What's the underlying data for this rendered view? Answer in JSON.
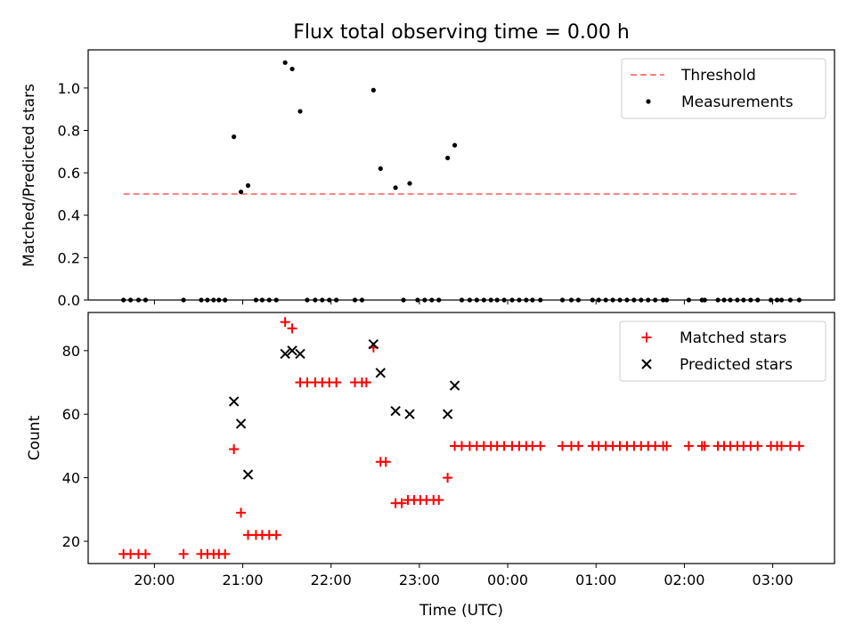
{
  "figure": {
    "title": "Flux total observing time = 0.00 h",
    "xlabel": "Time (UTC)",
    "xticks": [
      {
        "label": "20:00",
        "h": 20
      },
      {
        "label": "21:00",
        "h": 21
      },
      {
        "label": "22:00",
        "h": 22
      },
      {
        "label": "23:00",
        "h": 23
      },
      {
        "label": "00:00",
        "h": 24
      },
      {
        "label": "01:00",
        "h": 25
      },
      {
        "label": "02:00",
        "h": 26
      },
      {
        "label": "03:00",
        "h": 27
      }
    ],
    "xlim": [
      19.25,
      27.7
    ]
  },
  "colors": {
    "threshold": "#ff7f7f",
    "measurement": "#000000",
    "matched": "#ff0000",
    "predicted": "#000000"
  },
  "chart_data": [
    {
      "type": "scatter",
      "ylabel": "Matched/Predicted stars",
      "ylim": [
        0,
        1.18
      ],
      "yticks": [
        "0.0",
        "0.2",
        "0.4",
        "0.6",
        "0.8",
        "1.0"
      ],
      "legend": "top-right",
      "threshold": {
        "name": "Threshold",
        "value": 0.5,
        "x_range": [
          19.65,
          27.3
        ],
        "style": "dashed"
      },
      "series": [
        {
          "name": "Measurements",
          "points": [
            [
              19.65,
              0
            ],
            [
              19.73,
              0
            ],
            [
              19.82,
              0
            ],
            [
              19.9,
              0
            ],
            [
              20.33,
              0
            ],
            [
              20.53,
              0
            ],
            [
              20.6,
              0
            ],
            [
              20.67,
              0
            ],
            [
              20.73,
              0
            ],
            [
              20.8,
              0
            ],
            [
              20.9,
              0.77
            ],
            [
              20.98,
              0.51
            ],
            [
              21.06,
              0.54
            ],
            [
              21.15,
              0
            ],
            [
              21.22,
              0
            ],
            [
              21.3,
              0
            ],
            [
              21.38,
              0
            ],
            [
              21.48,
              1.12
            ],
            [
              21.56,
              1.09
            ],
            [
              21.65,
              0.89
            ],
            [
              21.73,
              0
            ],
            [
              21.82,
              0
            ],
            [
              21.9,
              0
            ],
            [
              21.98,
              0
            ],
            [
              22.06,
              0
            ],
            [
              22.27,
              0
            ],
            [
              22.35,
              0
            ],
            [
              22.48,
              0.99
            ],
            [
              22.56,
              0.62
            ],
            [
              22.73,
              0.53
            ],
            [
              22.82,
              0
            ],
            [
              22.89,
              0.55
            ],
            [
              22.98,
              0
            ],
            [
              23.06,
              0
            ],
            [
              23.14,
              0
            ],
            [
              23.22,
              0
            ],
            [
              23.32,
              0.67
            ],
            [
              23.4,
              0.73
            ],
            [
              23.48,
              0
            ],
            [
              23.57,
              0
            ],
            [
              23.65,
              0
            ],
            [
              23.73,
              0
            ],
            [
              23.81,
              0
            ],
            [
              23.88,
              0
            ],
            [
              23.96,
              0
            ],
            [
              24.05,
              0
            ],
            [
              24.13,
              0
            ],
            [
              24.21,
              0
            ],
            [
              24.28,
              0
            ],
            [
              24.37,
              0
            ],
            [
              24.62,
              0
            ],
            [
              24.72,
              0
            ],
            [
              24.8,
              0
            ],
            [
              24.96,
              0
            ],
            [
              25.03,
              0
            ],
            [
              25.11,
              0
            ],
            [
              25.19,
              0
            ],
            [
              25.27,
              0
            ],
            [
              25.35,
              0
            ],
            [
              25.43,
              0
            ],
            [
              25.51,
              0
            ],
            [
              25.59,
              0
            ],
            [
              25.67,
              0
            ],
            [
              25.76,
              0
            ],
            [
              25.8,
              0
            ],
            [
              26.05,
              0
            ],
            [
              26.2,
              0
            ],
            [
              26.23,
              0
            ],
            [
              26.38,
              0
            ],
            [
              26.45,
              0
            ],
            [
              26.52,
              0
            ],
            [
              26.6,
              0
            ],
            [
              26.67,
              0
            ],
            [
              26.75,
              0
            ],
            [
              26.83,
              0
            ],
            [
              26.98,
              0
            ],
            [
              27.05,
              0
            ],
            [
              27.1,
              0
            ],
            [
              27.2,
              0
            ],
            [
              27.3,
              0
            ]
          ]
        }
      ]
    },
    {
      "type": "scatter",
      "ylabel": "Count",
      "ylim": [
        13,
        92
      ],
      "yticks": [
        "20",
        "40",
        "60",
        "80"
      ],
      "legend": "top-right",
      "series": [
        {
          "name": "Matched stars",
          "marker": "plus",
          "points": [
            [
              19.65,
              16
            ],
            [
              19.73,
              16
            ],
            [
              19.82,
              16
            ],
            [
              19.9,
              16
            ],
            [
              20.33,
              16
            ],
            [
              20.53,
              16
            ],
            [
              20.6,
              16
            ],
            [
              20.67,
              16
            ],
            [
              20.73,
              16
            ],
            [
              20.8,
              16
            ],
            [
              20.9,
              49
            ],
            [
              20.98,
              29
            ],
            [
              21.06,
              22
            ],
            [
              21.15,
              22
            ],
            [
              21.22,
              22
            ],
            [
              21.3,
              22
            ],
            [
              21.38,
              22
            ],
            [
              21.48,
              89
            ],
            [
              21.56,
              87
            ],
            [
              21.65,
              70
            ],
            [
              21.73,
              70
            ],
            [
              21.82,
              70
            ],
            [
              21.9,
              70
            ],
            [
              21.98,
              70
            ],
            [
              22.06,
              70
            ],
            [
              22.27,
              70
            ],
            [
              22.35,
              70
            ],
            [
              22.4,
              70
            ],
            [
              22.48,
              81
            ],
            [
              22.56,
              45
            ],
            [
              22.62,
              45
            ],
            [
              22.73,
              32
            ],
            [
              22.8,
              32
            ],
            [
              22.87,
              33
            ],
            [
              22.94,
              33
            ],
            [
              23.01,
              33
            ],
            [
              23.08,
              33
            ],
            [
              23.16,
              33
            ],
            [
              23.22,
              33
            ],
            [
              23.32,
              40
            ],
            [
              23.4,
              50
            ],
            [
              23.48,
              50
            ],
            [
              23.57,
              50
            ],
            [
              23.65,
              50
            ],
            [
              23.73,
              50
            ],
            [
              23.81,
              50
            ],
            [
              23.88,
              50
            ],
            [
              23.96,
              50
            ],
            [
              24.05,
              50
            ],
            [
              24.13,
              50
            ],
            [
              24.21,
              50
            ],
            [
              24.28,
              50
            ],
            [
              24.37,
              50
            ],
            [
              24.62,
              50
            ],
            [
              24.72,
              50
            ],
            [
              24.8,
              50
            ],
            [
              24.96,
              50
            ],
            [
              25.03,
              50
            ],
            [
              25.11,
              50
            ],
            [
              25.19,
              50
            ],
            [
              25.27,
              50
            ],
            [
              25.35,
              50
            ],
            [
              25.43,
              50
            ],
            [
              25.51,
              50
            ],
            [
              25.59,
              50
            ],
            [
              25.67,
              50
            ],
            [
              25.76,
              50
            ],
            [
              25.8,
              50
            ],
            [
              26.05,
              50
            ],
            [
              26.2,
              50
            ],
            [
              26.23,
              50
            ],
            [
              26.38,
              50
            ],
            [
              26.45,
              50
            ],
            [
              26.52,
              50
            ],
            [
              26.6,
              50
            ],
            [
              26.67,
              50
            ],
            [
              26.75,
              50
            ],
            [
              26.83,
              50
            ],
            [
              26.98,
              50
            ],
            [
              27.05,
              50
            ],
            [
              27.1,
              50
            ],
            [
              27.2,
              50
            ],
            [
              27.3,
              50
            ]
          ]
        },
        {
          "name": "Predicted stars",
          "marker": "x",
          "points": [
            [
              20.9,
              64
            ],
            [
              20.98,
              57
            ],
            [
              21.06,
              41
            ],
            [
              21.48,
              79
            ],
            [
              21.56,
              80
            ],
            [
              21.65,
              79
            ],
            [
              22.48,
              82
            ],
            [
              22.56,
              73
            ],
            [
              22.73,
              61
            ],
            [
              22.89,
              60
            ],
            [
              23.32,
              60
            ],
            [
              23.4,
              69
            ]
          ]
        }
      ]
    }
  ]
}
